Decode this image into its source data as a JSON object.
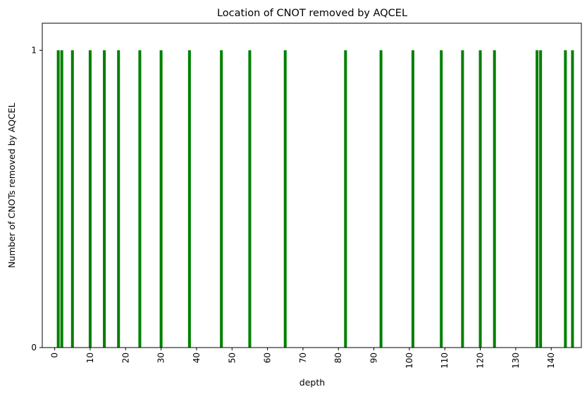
{
  "chart_data": {
    "type": "bar",
    "title": "Location of CNOT removed by AQCEL",
    "xlabel": "depth",
    "ylabel": "Number of CNOTs removed by AQCEL",
    "x": [
      1,
      2,
      5,
      10,
      14,
      18,
      24,
      30,
      38,
      47,
      55,
      65,
      82,
      92,
      101,
      109,
      115,
      120,
      124,
      136,
      137,
      144,
      146
    ],
    "values": [
      1,
      1,
      1,
      1,
      1,
      1,
      1,
      1,
      1,
      1,
      1,
      1,
      1,
      1,
      1,
      1,
      1,
      1,
      1,
      1,
      1,
      1,
      1
    ],
    "xlim": [
      -3.5,
      148.5
    ],
    "ylim": [
      0,
      1.0909
    ],
    "xticks": [
      0,
      10,
      20,
      30,
      40,
      50,
      60,
      70,
      80,
      90,
      100,
      110,
      120,
      130,
      140
    ],
    "yticks": [
      0,
      1
    ],
    "bar_color": "#008000",
    "grid": false,
    "xtick_rotation": "vertical"
  }
}
